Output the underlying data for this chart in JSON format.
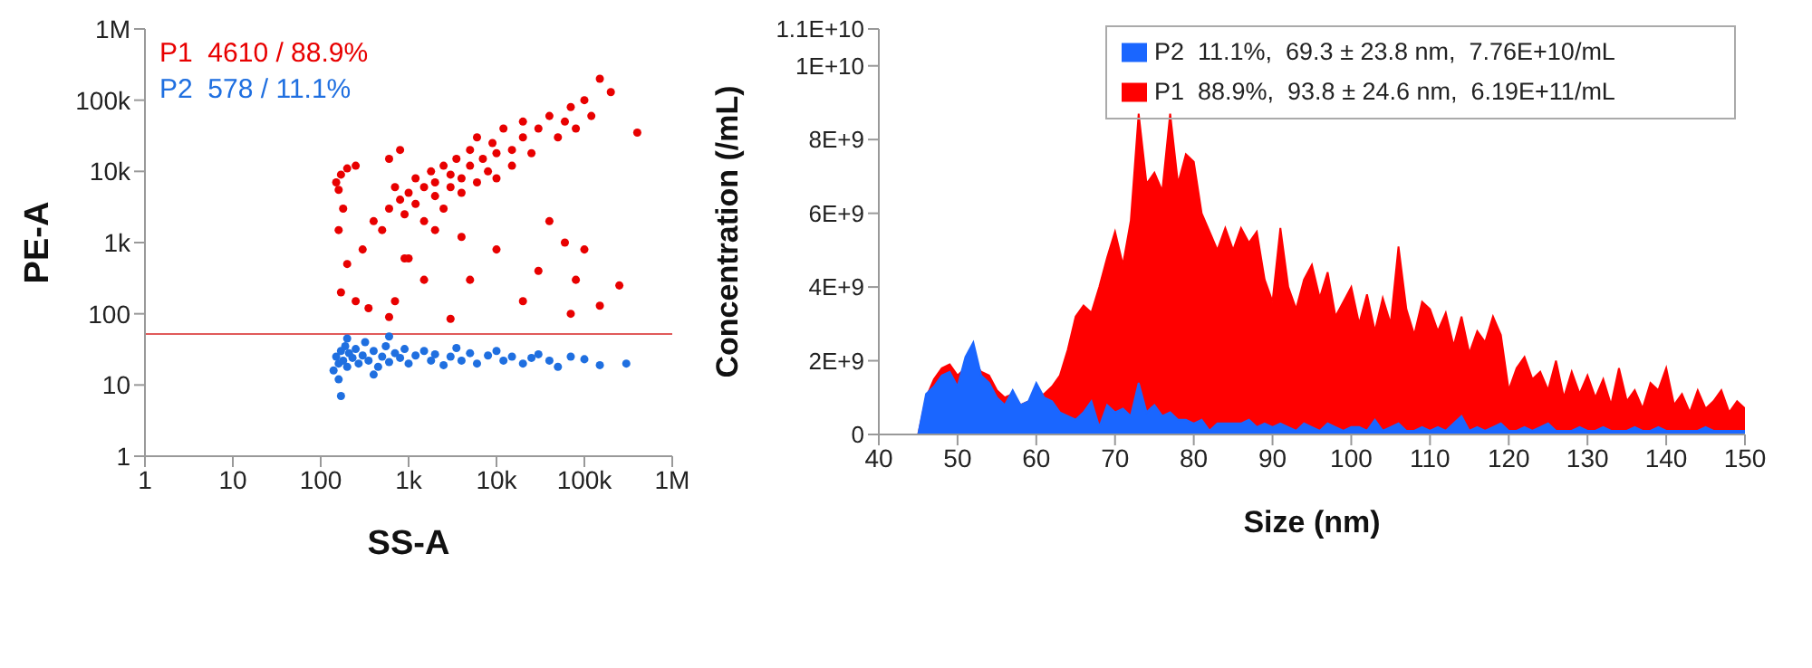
{
  "chart_data": [
    {
      "type": "scatter",
      "xlabel": "SS-A",
      "ylabel": "PE-A",
      "log": "xy",
      "marker": "circle",
      "xlim": [
        1,
        1000000
      ],
      "ylim": [
        1,
        1000000
      ],
      "xticks": [
        1,
        10,
        100,
        {
          "value": 1000,
          "label": "1k"
        },
        {
          "value": 10000,
          "label": "10k"
        },
        {
          "value": 100000,
          "label": "100k"
        },
        {
          "value": 1000000,
          "label": "1M"
        }
      ],
      "yticks": [
        1,
        10,
        100,
        {
          "value": 1000,
          "label": "1k"
        },
        {
          "value": 10000,
          "label": "10k"
        },
        {
          "value": 100000,
          "label": "100k"
        },
        {
          "value": 1000000,
          "label": "1M"
        }
      ],
      "ref_lines": [
        {
          "axis": "y",
          "value": 52,
          "color": "#e05a5a"
        }
      ],
      "series": [
        {
          "name": "P1  4610 / 88.9%",
          "color": "#e80000",
          "x": [
            150,
            160,
            170,
            200,
            250,
            180,
            160,
            200,
            170,
            250,
            300,
            400,
            500,
            600,
            700,
            800,
            900,
            1000,
            1200,
            1200,
            1500,
            1500,
            1800,
            2000,
            2000,
            2500,
            2500,
            3000,
            3000,
            3500,
            4000,
            4000,
            5000,
            5000,
            6000,
            6000,
            7000,
            8000,
            9000,
            10000,
            10000,
            12000,
            15000,
            15000,
            20000,
            20000,
            25000,
            30000,
            40000,
            50000,
            60000,
            70000,
            80000,
            100000,
            120000,
            150000,
            200000,
            400000,
            250000,
            150000,
            80000,
            60000,
            30000,
            10000,
            5000,
            3000,
            700,
            600,
            350,
            900,
            2000,
            800,
            600,
            1000,
            4000,
            40000,
            100000,
            70000,
            20000,
            1500
          ],
          "values": [
            7000,
            5500,
            9000,
            11000,
            12000,
            3000,
            1500,
            500,
            200,
            150,
            800,
            2000,
            1500,
            3000,
            6000,
            4000,
            2500,
            5000,
            3500,
            8000,
            6000,
            2000,
            10000,
            4500,
            7000,
            12000,
            3000,
            6000,
            9000,
            15000,
            5000,
            8000,
            12000,
            20000,
            7000,
            30000,
            15000,
            10000,
            25000,
            18000,
            8000,
            40000,
            20000,
            12000,
            30000,
            50000,
            18000,
            40000,
            60000,
            30000,
            50000,
            80000,
            40000,
            100000,
            60000,
            200000,
            130000,
            35000,
            250,
            130,
            300,
            1000,
            400,
            800,
            300,
            85,
            150,
            90,
            120,
            600,
            1500,
            20000,
            15000,
            600,
            1200,
            2000,
            800,
            100,
            150,
            300
          ]
        },
        {
          "name": "P2  578 / 11.1%",
          "color": "#1f6fe0",
          "x": [
            150,
            160,
            170,
            180,
            190,
            200,
            210,
            230,
            250,
            270,
            300,
            320,
            350,
            400,
            450,
            500,
            550,
            600,
            700,
            800,
            900,
            1000,
            1200,
            1500,
            1800,
            2000,
            2500,
            3000,
            3500,
            4000,
            5000,
            6000,
            8000,
            10000,
            12000,
            15000,
            20000,
            25000,
            30000,
            40000,
            50000,
            70000,
            100000,
            150000,
            300000,
            170,
            160,
            140,
            200,
            400,
            600
          ],
          "values": [
            25,
            20,
            30,
            22,
            35,
            18,
            28,
            24,
            32,
            20,
            26,
            40,
            22,
            30,
            18,
            25,
            35,
            21,
            28,
            24,
            32,
            20,
            26,
            30,
            22,
            27,
            19,
            25,
            33,
            22,
            28,
            20,
            26,
            30,
            22,
            25,
            20,
            24,
            27,
            22,
            18,
            25,
            23,
            19,
            20,
            7,
            12,
            16,
            45,
            14,
            48
          ]
        }
      ]
    },
    {
      "type": "area",
      "xlabel": "Size (nm)",
      "ylabel": "Concentration (/mL)",
      "legend": "top right",
      "xlim": [
        40,
        150
      ],
      "xticks": [
        40,
        50,
        60,
        70,
        80,
        90,
        100,
        110,
        120,
        130,
        140,
        150
      ],
      "ylim": [
        0,
        11000000000
      ],
      "yticks": [
        0,
        {
          "value": 2000000000,
          "label": "2E+9"
        },
        {
          "value": 4000000000,
          "label": "4E+9"
        },
        {
          "value": 6000000000,
          "label": "6E+9"
        },
        {
          "value": 8000000000,
          "label": "8E+9"
        },
        {
          "value": 10000000000,
          "label": "1E+10"
        },
        {
          "value": 11000000000,
          "label": "1.1E+10"
        }
      ],
      "x": [
        40,
        41,
        42,
        43,
        44,
        45,
        46,
        47,
        48,
        49,
        50,
        51,
        52,
        53,
        54,
        55,
        56,
        57,
        58,
        59,
        60,
        61,
        62,
        63,
        64,
        65,
        66,
        67,
        68,
        69,
        70,
        71,
        72,
        73,
        74,
        75,
        76,
        77,
        78,
        79,
        80,
        81,
        82,
        83,
        84,
        85,
        86,
        87,
        88,
        89,
        90,
        91,
        92,
        93,
        94,
        95,
        96,
        97,
        98,
        99,
        100,
        101,
        102,
        103,
        104,
        105,
        106,
        107,
        108,
        109,
        110,
        111,
        112,
        113,
        114,
        115,
        116,
        117,
        118,
        119,
        120,
        121,
        122,
        123,
        124,
        125,
        126,
        127,
        128,
        129,
        130,
        131,
        132,
        133,
        134,
        135,
        136,
        137,
        138,
        139,
        140,
        141,
        142,
        143,
        144,
        145,
        146,
        147,
        148,
        149,
        150
      ],
      "series": [
        {
          "name": "P2  11.1%,  69.3 ± 23.8 nm,  7.76E+10/mL",
          "color": "#1a66ff",
          "values": [
            0,
            0,
            0,
            0,
            0,
            0,
            1100000000.0,
            1300000000.0,
            1600000000.0,
            1700000000.0,
            1300000000.0,
            2100000000.0,
            2500000000.0,
            1600000000.0,
            1400000000.0,
            1000000000.0,
            800000000.0,
            1200000000.0,
            800000000.0,
            900000000.0,
            1400000000.0,
            1000000000.0,
            900000000.0,
            600000000.0,
            500000000.0,
            400000000.0,
            600000000.0,
            900000000.0,
            200000000.0,
            800000000.0,
            600000000.0,
            700000000.0,
            500000000.0,
            1400000000.0,
            600000000.0,
            800000000.0,
            500000000.0,
            600000000.0,
            400000000.0,
            400000000.0,
            300000000.0,
            400000000.0,
            100000000.0,
            300000000.0,
            300000000.0,
            300000000.0,
            300000000.0,
            400000000.0,
            200000000.0,
            300000000.0,
            200000000.0,
            300000000.0,
            200000000.0,
            100000000.0,
            300000000.0,
            200000000.0,
            100000000.0,
            300000000.0,
            200000000.0,
            100000000.0,
            200000000.0,
            200000000.0,
            100000000.0,
            400000000.0,
            100000000.0,
            200000000.0,
            300000000.0,
            100000000.0,
            100000000.0,
            200000000.0,
            100000000.0,
            200000000.0,
            100000000.0,
            300000000.0,
            500000000.0,
            100000000.0,
            200000000.0,
            100000000.0,
            200000000.0,
            300000000.0,
            100000000.0,
            100000000.0,
            200000000.0,
            100000000.0,
            200000000.0,
            300000000.0,
            100000000.0,
            100000000.0,
            100000000.0,
            200000000.0,
            100000000.0,
            100000000.0,
            200000000.0,
            100000000.0,
            100000000.0,
            100000000.0,
            200000000.0,
            100000000.0,
            100000000.0,
            200000000.0,
            100000000.0,
            100000000.0,
            100000000.0,
            100000000.0,
            100000000.0,
            200000000.0,
            100000000.0,
            100000000.0,
            100000000.0,
            100000000.0,
            100000000.0
          ]
        },
        {
          "name": "P1  88.9%,  93.8 ± 24.6 nm,  6.19E+11/mL",
          "color": "#ff0000",
          "values": [
            0,
            0,
            0,
            0,
            0,
            0,
            1000000000.0,
            1500000000.0,
            1800000000.0,
            1900000000.0,
            1600000000.0,
            1800000000.0,
            2000000000.0,
            1700000000.0,
            1600000000.0,
            1200000000.0,
            1000000000.0,
            1100000000.0,
            800000000.0,
            900000000.0,
            1000000000.0,
            1100000000.0,
            1300000000.0,
            1600000000.0,
            2300000000.0,
            3200000000.0,
            3500000000.0,
            3300000000.0,
            4000000000.0,
            4800000000.0,
            5500000000.0,
            4600000000.0,
            5800000000.0,
            8700000000.0,
            6800000000.0,
            7100000000.0,
            6600000000.0,
            8700000000.0,
            6800000000.0,
            7600000000.0,
            7400000000.0,
            6000000000.0,
            5500000000.0,
            5000000000.0,
            5600000000.0,
            5000000000.0,
            5600000000.0,
            5200000000.0,
            5500000000.0,
            4200000000.0,
            3600000000.0,
            5600000000.0,
            4000000000.0,
            3400000000.0,
            4200000000.0,
            4600000000.0,
            3700000000.0,
            4400000000.0,
            3200000000.0,
            3600000000.0,
            4000000000.0,
            3000000000.0,
            3800000000.0,
            2800000000.0,
            3700000000.0,
            3000000000.0,
            5100000000.0,
            3400000000.0,
            2700000000.0,
            3600000000.0,
            3400000000.0,
            2800000000.0,
            3300000000.0,
            2400000000.0,
            3200000000.0,
            2200000000.0,
            2800000000.0,
            2500000000.0,
            3200000000.0,
            2700000000.0,
            1200000000.0,
            1800000000.0,
            2100000000.0,
            1500000000.0,
            1700000000.0,
            1200000000.0,
            2000000000.0,
            1000000000.0,
            1700000000.0,
            1100000000.0,
            1600000000.0,
            1000000000.0,
            1500000000.0,
            800000000.0,
            1800000000.0,
            900000000.0,
            1200000000.0,
            700000000.0,
            1400000000.0,
            1200000000.0,
            1800000000.0,
            800000000.0,
            1100000000.0,
            600000000.0,
            1200000000.0,
            700000000.0,
            900000000.0,
            1200000000.0,
            600000000.0,
            900000000.0,
            700000000.0
          ]
        }
      ]
    }
  ]
}
